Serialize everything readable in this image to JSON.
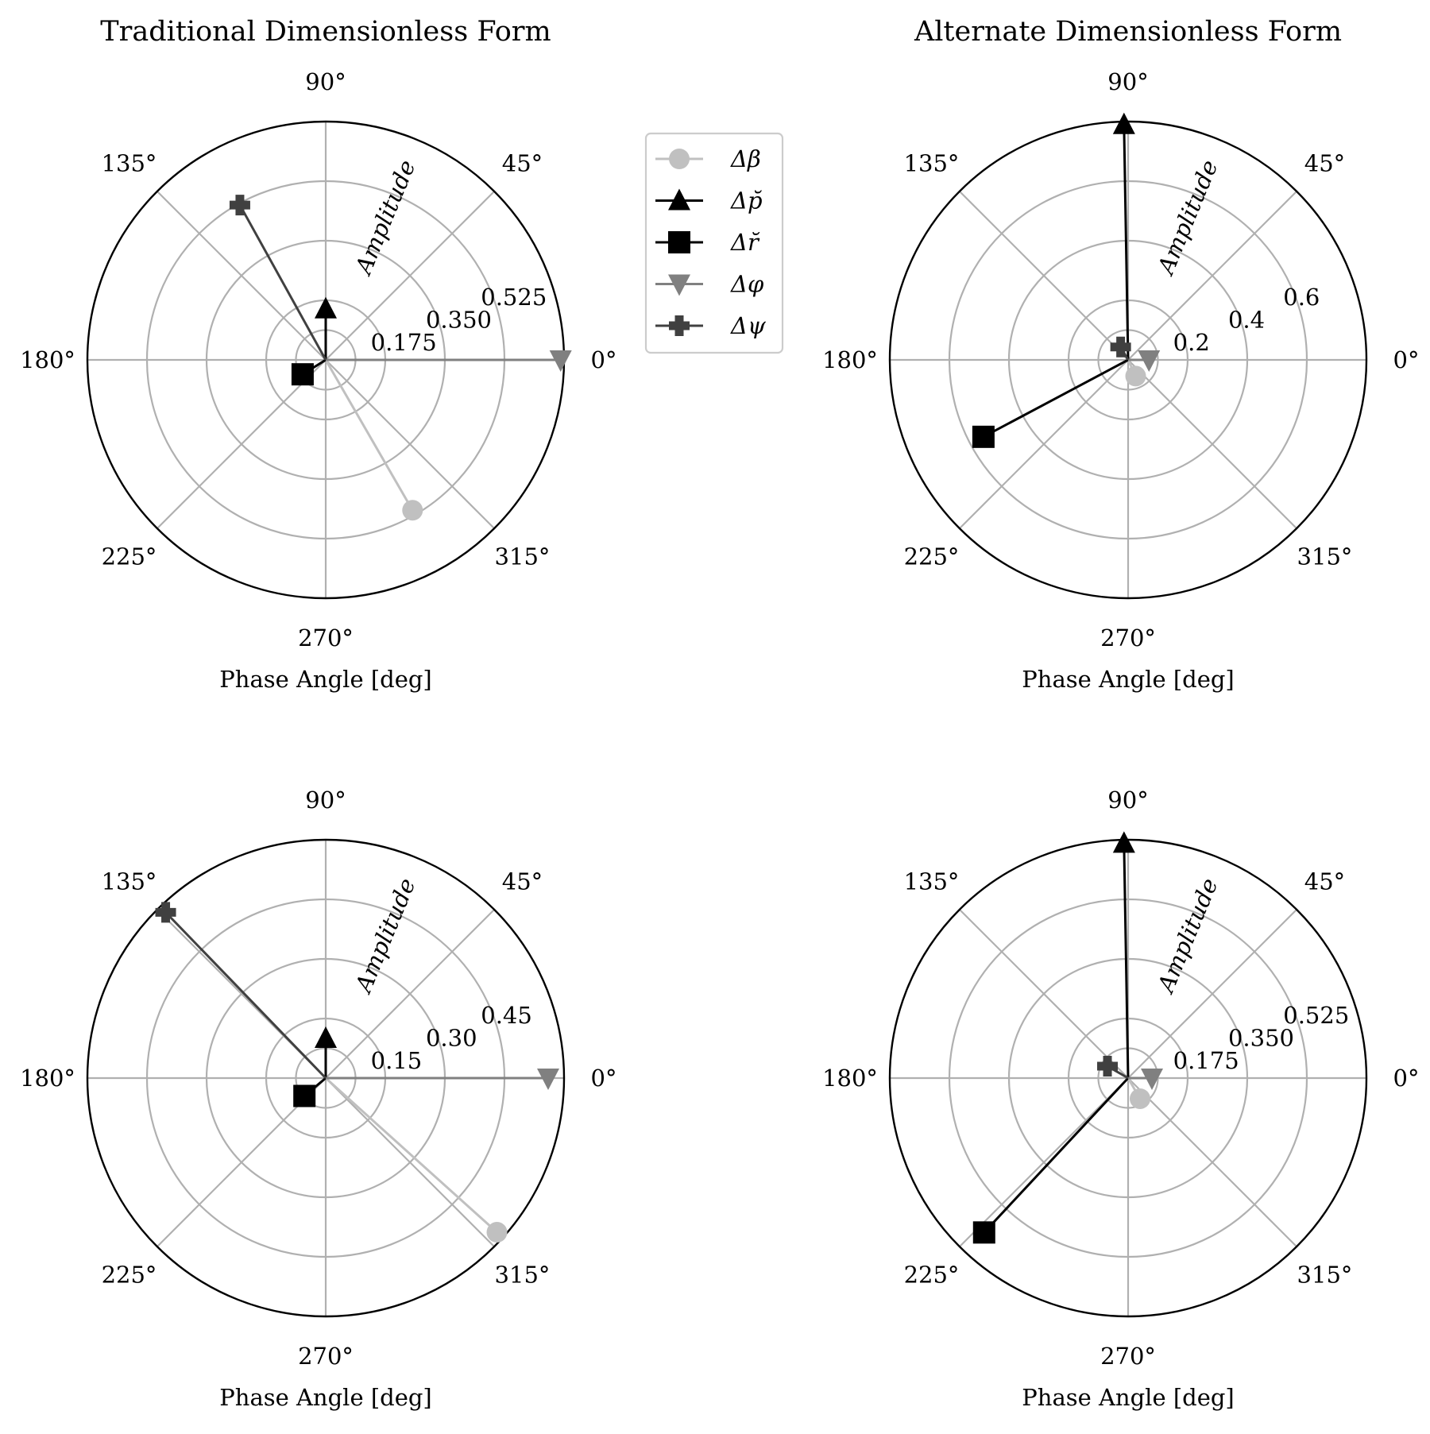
{
  "chart_data": [
    {
      "type": "polar",
      "title": "Traditional Dimensionless Form",
      "xlabel": "Phase Angle [deg]",
      "rlabel": "Amplitude",
      "angle_ticks": [
        "0°",
        "45°",
        "90°",
        "135°",
        "180°",
        "225°",
        "270°",
        "315°"
      ],
      "r_ticks": [
        0.175,
        0.35,
        0.525
      ],
      "r_tick_labels": [
        "0.175",
        "0.350",
        "0.525"
      ],
      "rmax": 0.7,
      "grid": true,
      "series": [
        {
          "name": "Δβ",
          "amplitude": 0.51,
          "phase_deg": 300
        },
        {
          "name": "Δp̆",
          "amplitude": 0.15,
          "phase_deg": 90
        },
        {
          "name": "Δr̆",
          "amplitude": 0.08,
          "phase_deg": 212
        },
        {
          "name": "Δφ",
          "amplitude": 0.69,
          "phase_deg": 0
        },
        {
          "name": "Δψ",
          "amplitude": 0.52,
          "phase_deg": 119
        }
      ]
    },
    {
      "type": "polar",
      "title": "Alternate Dimensionless Form",
      "xlabel": "Phase Angle [deg]",
      "rlabel": "Amplitude",
      "angle_ticks": [
        "0°",
        "45°",
        "90°",
        "135°",
        "180°",
        "225°",
        "270°",
        "315°"
      ],
      "r_ticks": [
        0.2,
        0.4,
        0.6
      ],
      "r_tick_labels": [
        "0.2",
        "0.4",
        "0.6"
      ],
      "rmax": 0.8,
      "grid": true,
      "series": [
        {
          "name": "Δβ",
          "amplitude": 0.06,
          "phase_deg": 295
        },
        {
          "name": "Δp̆",
          "amplitude": 0.79,
          "phase_deg": 91
        },
        {
          "name": "Δr̆",
          "amplitude": 0.55,
          "phase_deg": 208
        },
        {
          "name": "Δφ",
          "amplitude": 0.07,
          "phase_deg": 0
        },
        {
          "name": "Δψ",
          "amplitude": 0.05,
          "phase_deg": 120
        }
      ]
    },
    {
      "type": "polar",
      "title": "",
      "xlabel": "Phase Angle [deg]",
      "rlabel": "Amplitude",
      "angle_ticks": [
        "0°",
        "45°",
        "90°",
        "135°",
        "180°",
        "225°",
        "270°",
        "315°"
      ],
      "r_ticks": [
        0.15,
        0.3,
        0.45
      ],
      "r_tick_labels": [
        "0.15",
        "0.30",
        "0.45"
      ],
      "rmax": 0.6,
      "grid": true,
      "series": [
        {
          "name": "Δβ",
          "amplitude": 0.58,
          "phase_deg": 318
        },
        {
          "name": "Δp̆",
          "amplitude": 0.1,
          "phase_deg": 90
        },
        {
          "name": "Δr̆",
          "amplitude": 0.07,
          "phase_deg": 220
        },
        {
          "name": "Δφ",
          "amplitude": 0.56,
          "phase_deg": 0
        },
        {
          "name": "Δψ",
          "amplitude": 0.58,
          "phase_deg": 134
        }
      ]
    },
    {
      "type": "polar",
      "title": "",
      "xlabel": "Phase Angle [deg]",
      "rlabel": "Amplitude",
      "angle_ticks": [
        "0°",
        "45°",
        "90°",
        "135°",
        "180°",
        "225°",
        "270°",
        "315°"
      ],
      "r_ticks": [
        0.175,
        0.35,
        0.525
      ],
      "r_tick_labels": [
        "0.175",
        "0.350",
        "0.525"
      ],
      "rmax": 0.7,
      "grid": true,
      "series": [
        {
          "name": "Δβ",
          "amplitude": 0.07,
          "phase_deg": 300
        },
        {
          "name": "Δp̆",
          "amplitude": 0.69,
          "phase_deg": 91
        },
        {
          "name": "Δr̆",
          "amplitude": 0.62,
          "phase_deg": 227
        },
        {
          "name": "Δφ",
          "amplitude": 0.07,
          "phase_deg": 0
        },
        {
          "name": "Δψ",
          "amplitude": 0.07,
          "phase_deg": 150
        }
      ]
    }
  ],
  "legend": {
    "placement": "right of top-left plot",
    "entries": [
      {
        "label": "Δβ",
        "color": "#c0c0c0",
        "marker": "circle"
      },
      {
        "label": "Δp̆",
        "color": "#000000",
        "marker": "triangle-up"
      },
      {
        "label": "Δr̆",
        "color": "#000000",
        "marker": "square"
      },
      {
        "label": "Δφ",
        "color": "#808080",
        "marker": "triangle-down"
      },
      {
        "label": "Δψ",
        "color": "#404040",
        "marker": "plus"
      }
    ]
  },
  "colors": {
    "grid": "#b0b0b0",
    "spine": "#000000"
  }
}
